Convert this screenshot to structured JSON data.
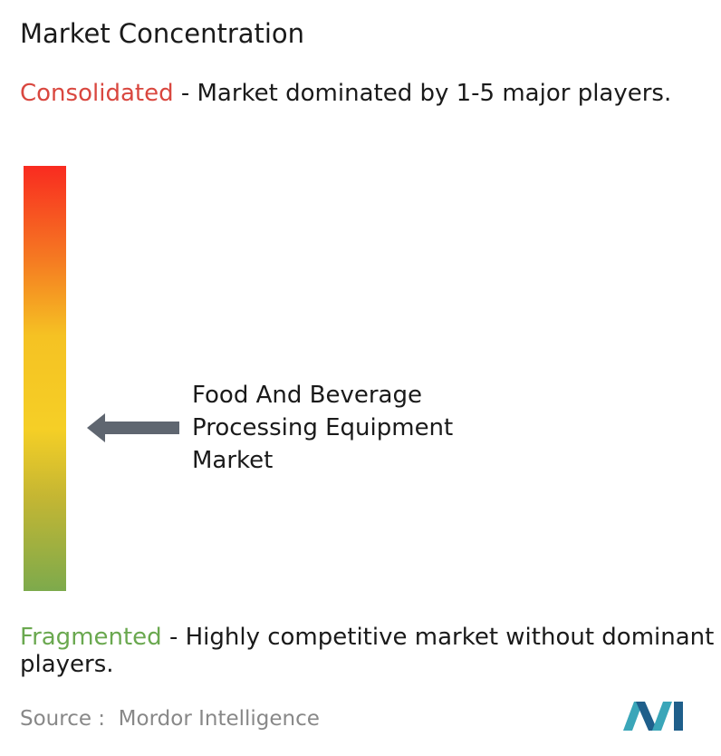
{
  "header": {
    "title": "Market Concentration"
  },
  "scale": {
    "top": {
      "term": "Consolidated",
      "description": " - Market dominated by 1-5 major players."
    },
    "bottom": {
      "term": "Fragmented",
      "description": " - Highly competitive market without dominant players."
    }
  },
  "marker": {
    "label": "Food And Beverage Processing Equipment Market"
  },
  "footer": {
    "source": "Source :  Mordor Intelligence"
  }
}
